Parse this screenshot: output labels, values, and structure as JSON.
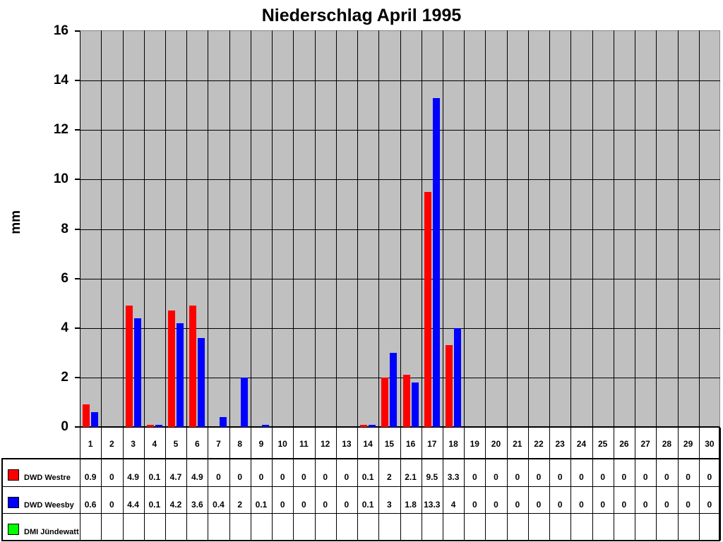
{
  "chart_data": {
    "type": "bar",
    "title": "Niederschlag April 1995",
    "ylabel": "mm",
    "ylim": [
      0,
      16
    ],
    "ytick_step": 2,
    "grid": true,
    "plot_background": "#c0c0c0",
    "gridline_color": "#000000",
    "legend_position": "table-left",
    "categories": [
      "1",
      "2",
      "3",
      "4",
      "5",
      "6",
      "7",
      "8",
      "9",
      "10",
      "11",
      "12",
      "13",
      "14",
      "15",
      "16",
      "17",
      "18",
      "19",
      "20",
      "21",
      "22",
      "23",
      "24",
      "25",
      "26",
      "27",
      "28",
      "29",
      "30"
    ],
    "series": [
      {
        "name": "DWD Westre",
        "color": "#ff0000",
        "values": [
          "0.9",
          "0",
          "4.9",
          "0.1",
          "4.7",
          "4.9",
          "0",
          "0",
          "0",
          "0",
          "0",
          "0",
          "0",
          "0.1",
          "2",
          "2.1",
          "9.5",
          "3.3",
          "0",
          "0",
          "0",
          "0",
          "0",
          "0",
          "0",
          "0",
          "0",
          "0",
          "0",
          "0"
        ]
      },
      {
        "name": "DWD Weesby",
        "color": "#0000ff",
        "values": [
          "0.6",
          "0",
          "4.4",
          "0.1",
          "4.2",
          "3.6",
          "0.4",
          "2",
          "0.1",
          "0",
          "0",
          "0",
          "0",
          "0.1",
          "3",
          "1.8",
          "13.3",
          "4",
          "0",
          "0",
          "0",
          "0",
          "0",
          "0",
          "0",
          "0",
          "0",
          "0",
          "0",
          "0"
        ]
      },
      {
        "name": "DMI Jündewatt",
        "color": "#00ff00",
        "values": [
          "",
          "",
          "",
          "",
          "",
          "",
          "",
          "",
          "",
          "",
          "",
          "",
          "",
          "",
          "",
          "",
          "",
          "",
          "",
          "",
          "",
          "",
          "",
          "",
          "",
          "",
          "",
          "",
          "",
          ""
        ]
      }
    ]
  }
}
